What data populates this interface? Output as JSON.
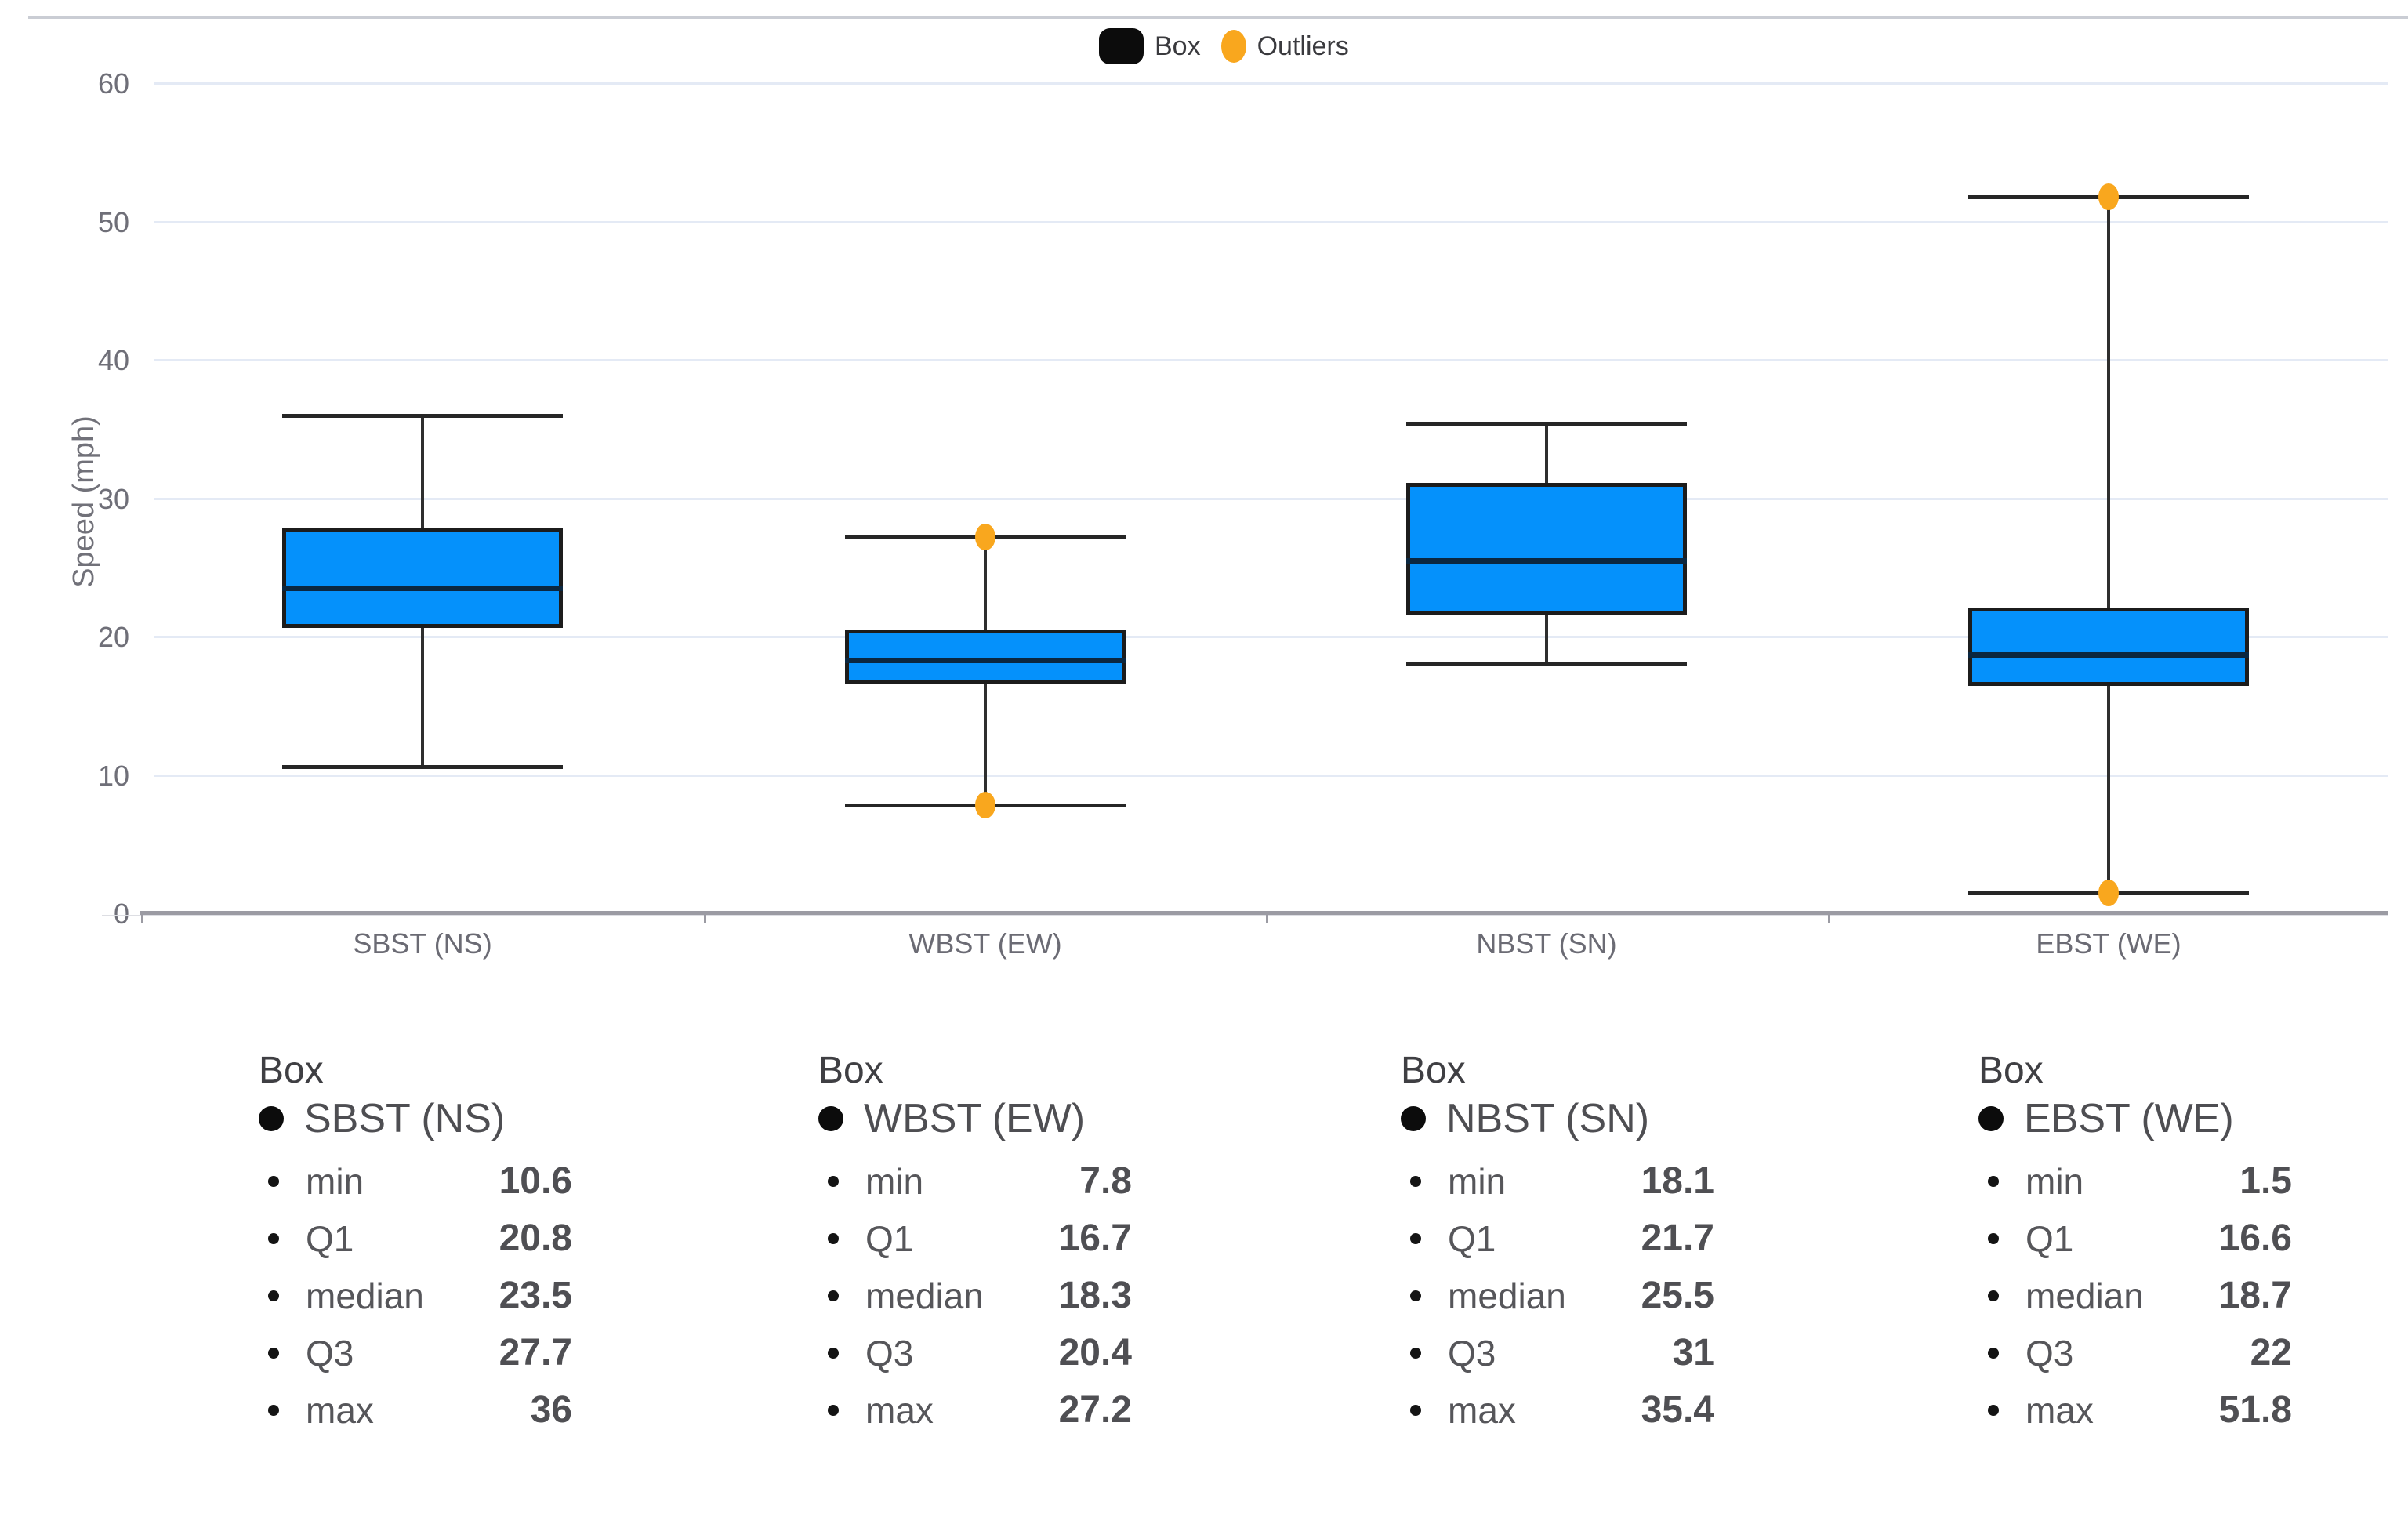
{
  "legend": {
    "box_label": "Box",
    "outliers_label": "Outliers",
    "box_swatch_color": "#0c0c0c",
    "outlier_color": "#F9A71E"
  },
  "y_axis": {
    "title": "Speed (mph)"
  },
  "chart_data": {
    "type": "box",
    "title": "",
    "xlabel": "",
    "ylabel": "Speed (mph)",
    "ylim": [
      0,
      60
    ],
    "yticks": [
      0,
      10,
      20,
      30,
      40,
      50,
      60
    ],
    "grid": true,
    "legend_position": "top-center",
    "box_fill": "#0591FB",
    "categories": [
      "SBST (NS)",
      "WBST (EW)",
      "NBST (SN)",
      "EBST (WE)"
    ],
    "series": [
      {
        "name": "SBST (NS)",
        "min": 10.6,
        "q1": 20.8,
        "median": 23.5,
        "q3": 27.7,
        "max": 36,
        "outliers": []
      },
      {
        "name": "WBST (EW)",
        "min": 7.8,
        "q1": 16.7,
        "median": 18.3,
        "q3": 20.4,
        "max": 27.2,
        "outliers": [
          27.2,
          7.8
        ]
      },
      {
        "name": "NBST (SN)",
        "min": 18.1,
        "q1": 21.7,
        "median": 25.5,
        "q3": 31,
        "max": 35.4,
        "outliers": []
      },
      {
        "name": "EBST (WE)",
        "min": 1.5,
        "q1": 16.6,
        "median": 18.7,
        "q3": 22,
        "max": 51.8,
        "outliers": [
          51.8,
          1.5
        ]
      }
    ]
  },
  "cards": [
    {
      "title": "Box",
      "series": "SBST (NS)",
      "rows": [
        {
          "label": "min",
          "value": "10.6"
        },
        {
          "label": "Q1",
          "value": "20.8"
        },
        {
          "label": "median",
          "value": "23.5"
        },
        {
          "label": "Q3",
          "value": "27.7"
        },
        {
          "label": "max",
          "value": "36"
        }
      ]
    },
    {
      "title": "Box",
      "series": "WBST (EW)",
      "rows": [
        {
          "label": "min",
          "value": "7.8"
        },
        {
          "label": "Q1",
          "value": "16.7"
        },
        {
          "label": "median",
          "value": "18.3"
        },
        {
          "label": "Q3",
          "value": "20.4"
        },
        {
          "label": "max",
          "value": "27.2"
        }
      ]
    },
    {
      "title": "Box",
      "series": "NBST (SN)",
      "rows": [
        {
          "label": "min",
          "value": "18.1"
        },
        {
          "label": "Q1",
          "value": "21.7"
        },
        {
          "label": "median",
          "value": "25.5"
        },
        {
          "label": "Q3",
          "value": "31"
        },
        {
          "label": "max",
          "value": "35.4"
        }
      ]
    },
    {
      "title": "Box",
      "series": "EBST (WE)",
      "rows": [
        {
          "label": "min",
          "value": "1.5"
        },
        {
          "label": "Q1",
          "value": "16.6"
        },
        {
          "label": "median",
          "value": "18.7"
        },
        {
          "label": "Q3",
          "value": "22"
        },
        {
          "label": "max",
          "value": "51.8"
        }
      ]
    }
  ]
}
